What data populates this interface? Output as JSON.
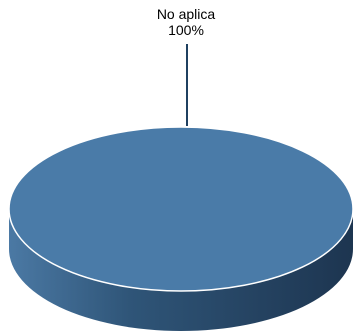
{
  "chart_data": {
    "type": "pie",
    "title": "",
    "slices": [
      {
        "label": "No aplica",
        "value": 100,
        "value_label": "100%",
        "color": "#4A7BA8"
      }
    ],
    "style": "3d",
    "legend": "none"
  }
}
